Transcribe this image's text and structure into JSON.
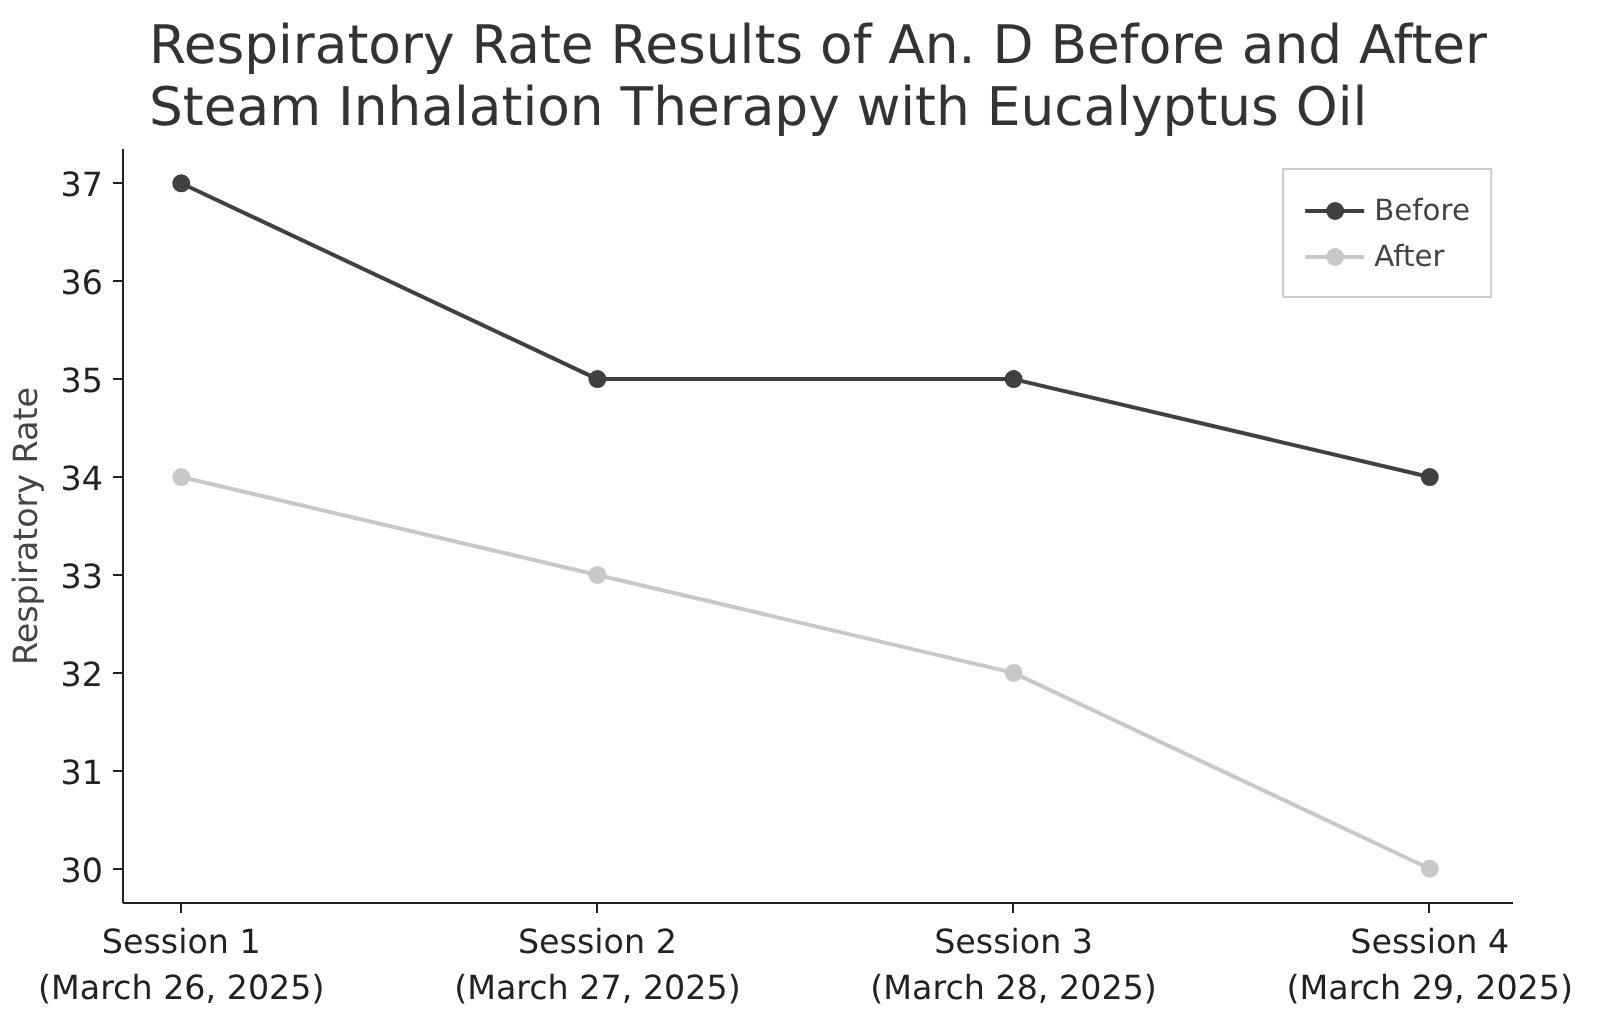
{
  "chart_data": {
    "type": "line",
    "title": "Respiratory Rate Results of An. D Before and After\nSteam Inhalation Therapy with Eucalyptus Oil",
    "ylabel": "Respiratory Rate",
    "categories": [
      "Session 1\n(March 26, 2025)",
      "Session 2\n(March 27, 2025)",
      "Session 3\n(March 28, 2025)",
      "Session 4\n(March 29, 2025)"
    ],
    "series": [
      {
        "name": "Before",
        "color": "#404040",
        "values": [
          37,
          35,
          35,
          34
        ]
      },
      {
        "name": "After",
        "color": "#c8c8c8",
        "values": [
          34,
          33,
          32,
          30
        ]
      }
    ],
    "ylim": [
      29.65,
      37.35
    ],
    "yticks": [
      30,
      31,
      32,
      33,
      34,
      35,
      36,
      37
    ],
    "grid": false,
    "legend": "top right",
    "marker": "circle",
    "line_style": "solid"
  }
}
